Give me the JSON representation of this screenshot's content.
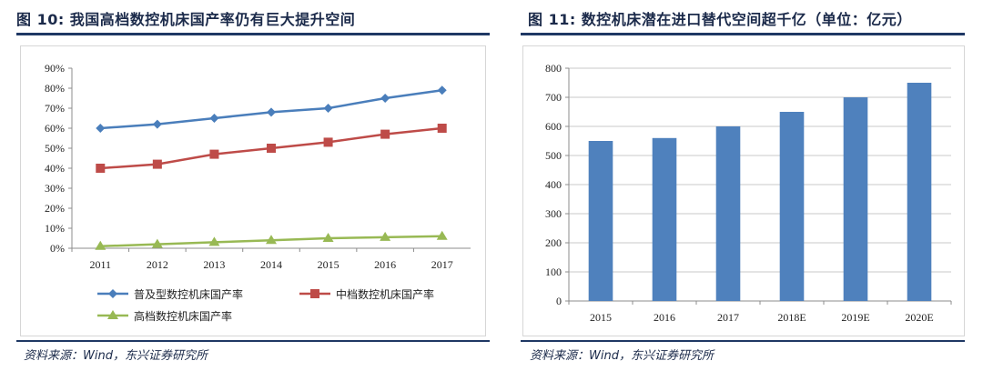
{
  "left": {
    "title": "图 10: 我国高档数控机床国产率仍有巨大提升空间",
    "source": "资料来源：Wind，东兴证券研究所",
    "chart_data": {
      "type": "line",
      "x": [
        "2011",
        "2012",
        "2013",
        "2014",
        "2015",
        "2016",
        "2017"
      ],
      "yticks": [
        "0%",
        "10%",
        "20%",
        "30%",
        "40%",
        "50%",
        "60%",
        "70%",
        "80%",
        "90%"
      ],
      "ylim": [
        0,
        90
      ],
      "grid": false,
      "legend_position": "bottom",
      "series": [
        {
          "name": "普及型数控机床国产率",
          "color": "#4a7ebb",
          "marker": "diamond",
          "values": [
            60,
            62,
            65,
            68,
            70,
            75,
            79
          ]
        },
        {
          "name": "中档数控机床国产率",
          "color": "#be4b48",
          "marker": "square",
          "values": [
            40,
            42,
            47,
            50,
            53,
            57,
            60
          ]
        },
        {
          "name": "高档数控机床国产率",
          "color": "#98b954",
          "marker": "triangle",
          "values": [
            1,
            2,
            3,
            4,
            5,
            5.5,
            6
          ]
        }
      ]
    }
  },
  "right": {
    "title": "图 11: 数控机床潜在进口替代空间超千亿（单位：亿元）",
    "source": "资料来源：Wind，东兴证券研究所",
    "chart_data": {
      "type": "bar",
      "categories": [
        "2015",
        "2016",
        "2017",
        "2018E",
        "2019E",
        "2020E"
      ],
      "values": [
        550,
        560,
        600,
        650,
        700,
        750
      ],
      "yticks": [
        "0",
        "100",
        "200",
        "300",
        "400",
        "500",
        "600",
        "700",
        "800"
      ],
      "ylim": [
        0,
        800
      ],
      "grid": true,
      "color": "#4f81bd"
    }
  }
}
